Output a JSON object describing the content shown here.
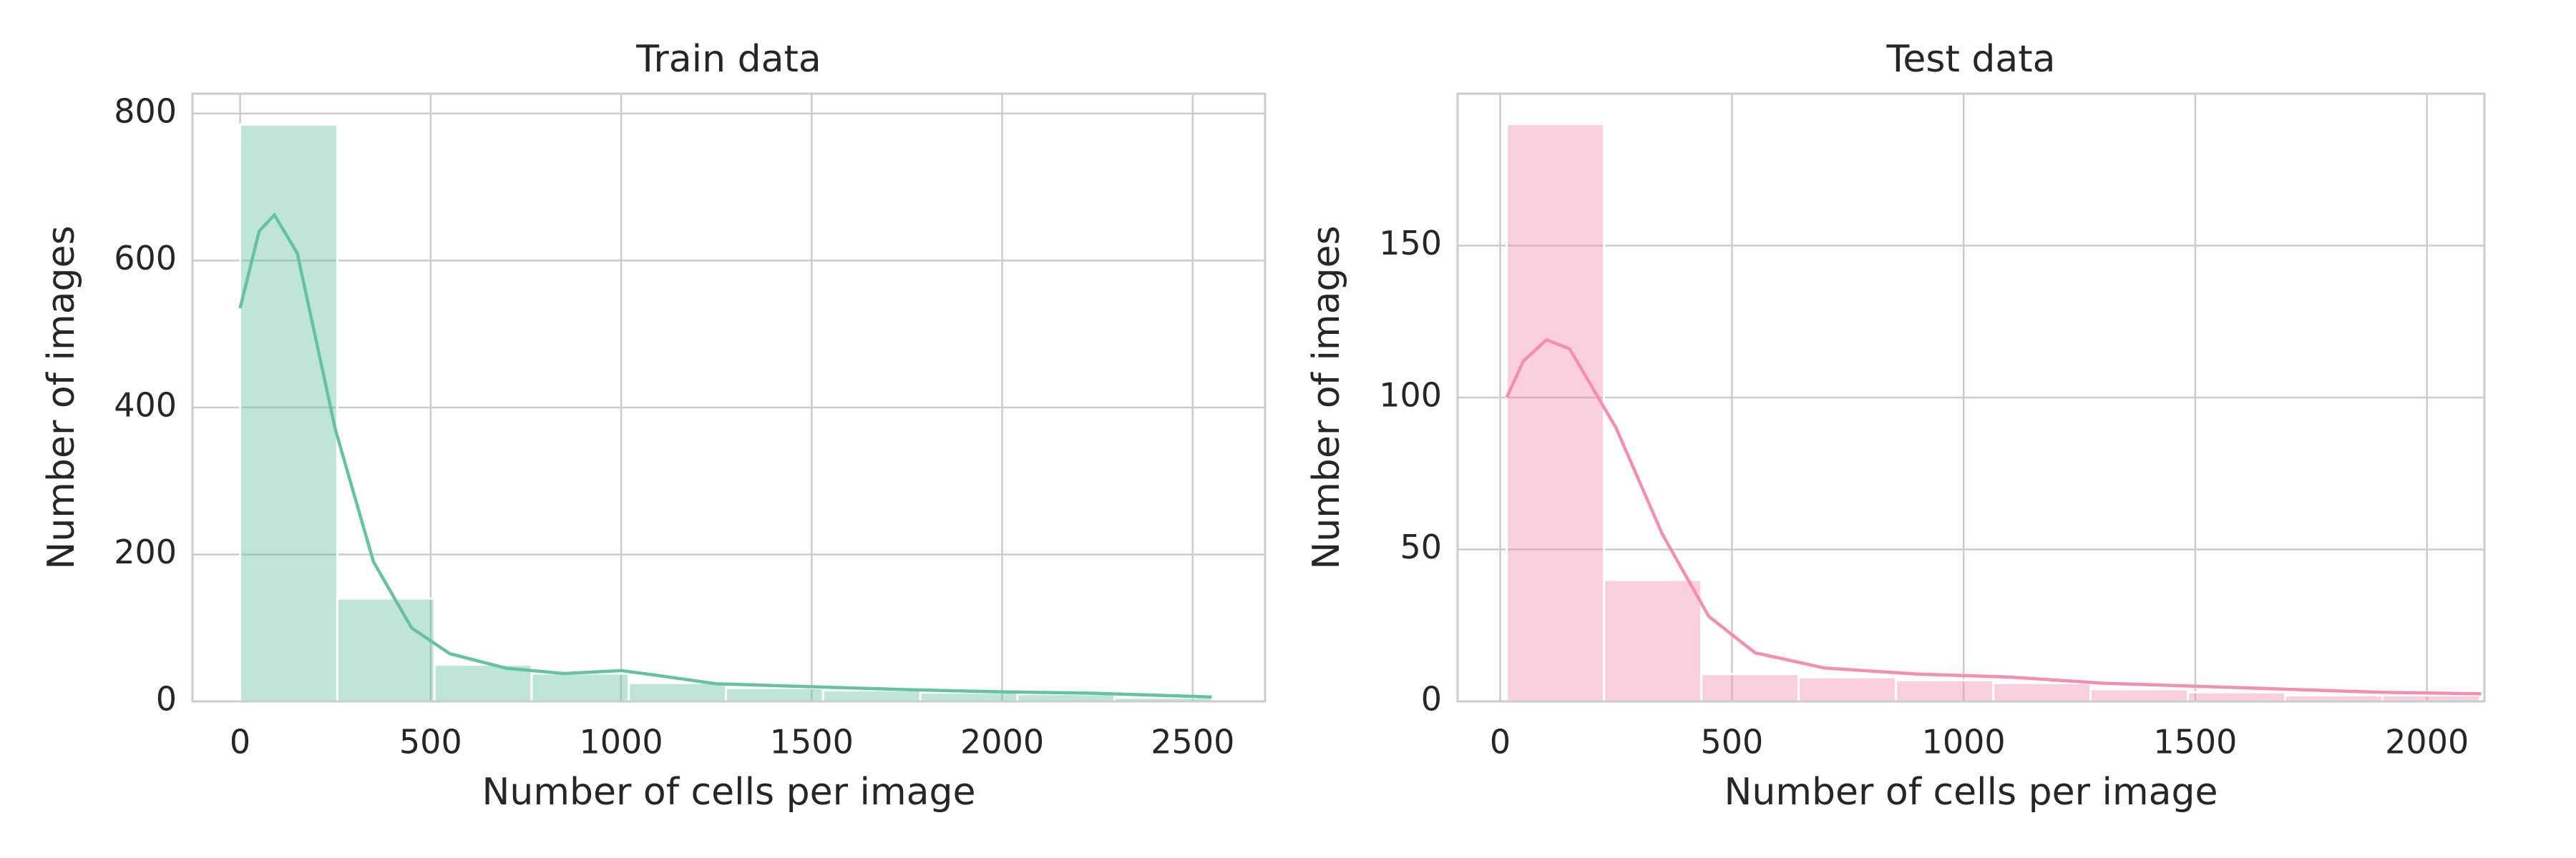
{
  "chart_data": [
    {
      "type": "histogram",
      "title": "Train data",
      "xlabel": "Number of cells per image",
      "ylabel": "Number of images",
      "bins": [
        0,
        255,
        510,
        765,
        1020,
        1275,
        1530,
        1785,
        2040,
        2295,
        2550
      ],
      "values": [
        785,
        140,
        50,
        38,
        25,
        18,
        15,
        12,
        10,
        5
      ],
      "color": "#66c2a5",
      "kde": {
        "x": [
          0,
          50,
          90,
          150,
          250,
          350,
          450,
          550,
          700,
          850,
          1000,
          1100,
          1250,
          1500,
          1750,
          2000,
          2250,
          2550
        ],
        "y": [
          535,
          640,
          662,
          610,
          370,
          190,
          100,
          65,
          45,
          38,
          42,
          35,
          24,
          20,
          16,
          13,
          11,
          6
        ]
      },
      "xlim": [
        -125,
        2690
      ],
      "ylim": [
        0,
        827
      ],
      "xticks": [
        0,
        500,
        1000,
        1500,
        2000,
        2500
      ],
      "yticks": [
        0,
        200,
        400,
        600,
        800
      ],
      "grid": true
    },
    {
      "type": "histogram",
      "title": "Test data",
      "xlabel": "Number of cells per image",
      "ylabel": "Number of images",
      "bins": [
        14,
        224,
        434,
        644,
        854,
        1064,
        1274,
        1484,
        1694,
        1904,
        2114
      ],
      "values": [
        190,
        40,
        9,
        8,
        7,
        6,
        4,
        3,
        2,
        2
      ],
      "color": "#f48fb1",
      "kde": {
        "x": [
          14,
          50,
          100,
          150,
          250,
          350,
          450,
          550,
          700,
          900,
          1100,
          1300,
          1500,
          1700,
          1900,
          2117
        ],
        "y": [
          100,
          112,
          119,
          116,
          90,
          55,
          28,
          16,
          11,
          9,
          8,
          6,
          5,
          4,
          3,
          2.5
        ]
      },
      "xlim": [
        -92,
        2124
      ],
      "ylim": [
        0,
        200
      ],
      "xticks": [
        0,
        500,
        1000,
        1500,
        2000
      ],
      "yticks": [
        0,
        50,
        100,
        150
      ],
      "grid": true
    }
  ]
}
